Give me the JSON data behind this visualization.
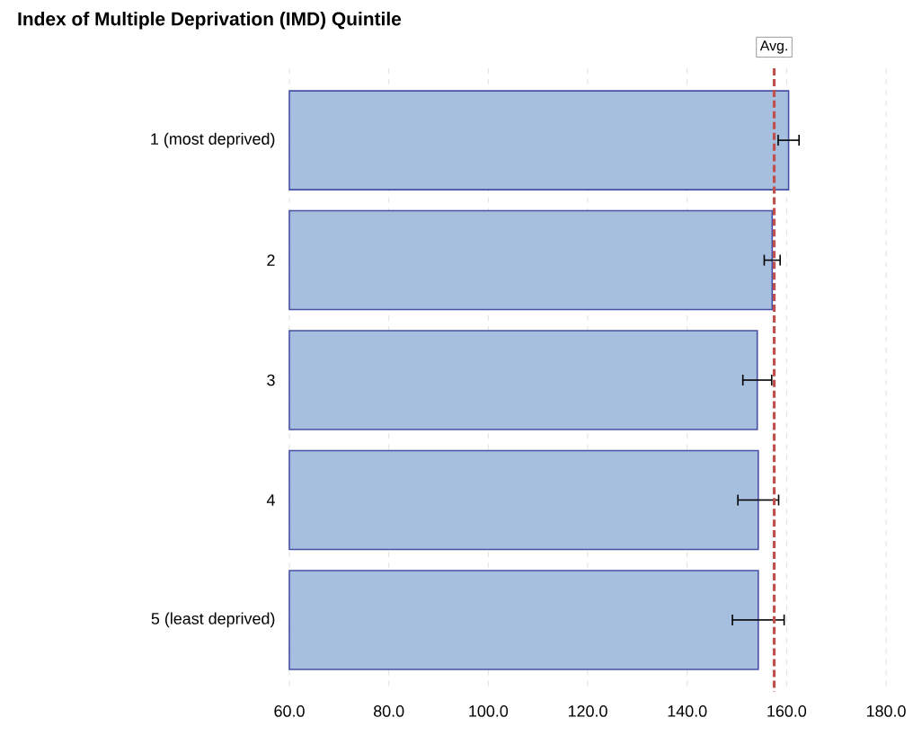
{
  "chart_data": {
    "type": "bar",
    "orientation": "horizontal",
    "title": "Index of Multiple Deprivation (IMD) Quintile",
    "categories": [
      "1 (most deprived)",
      "2",
      "3",
      "4",
      "5 (least deprived)"
    ],
    "values": [
      160.4,
      157.1,
      154.1,
      154.3,
      154.3
    ],
    "errors": [
      2.1,
      1.6,
      2.9,
      4.1,
      5.2
    ],
    "color": "#a7bfde",
    "xlim": [
      60,
      180
    ],
    "xticks": [
      {
        "value": 60,
        "label": "60.0"
      },
      {
        "value": 80,
        "label": "80.0"
      },
      {
        "value": 100,
        "label": "100.0"
      },
      {
        "value": 120,
        "label": "120.0"
      },
      {
        "value": 140,
        "label": "140.0"
      },
      {
        "value": 160,
        "label": "160.0"
      },
      {
        "value": 180,
        "label": "180.0"
      }
    ],
    "grid": "x",
    "legend": false,
    "ref_lines": [
      {
        "axis": "x",
        "value": 157.5,
        "label": "Avg.",
        "color": "#c0504d",
        "line_style": "dashed"
      }
    ]
  }
}
